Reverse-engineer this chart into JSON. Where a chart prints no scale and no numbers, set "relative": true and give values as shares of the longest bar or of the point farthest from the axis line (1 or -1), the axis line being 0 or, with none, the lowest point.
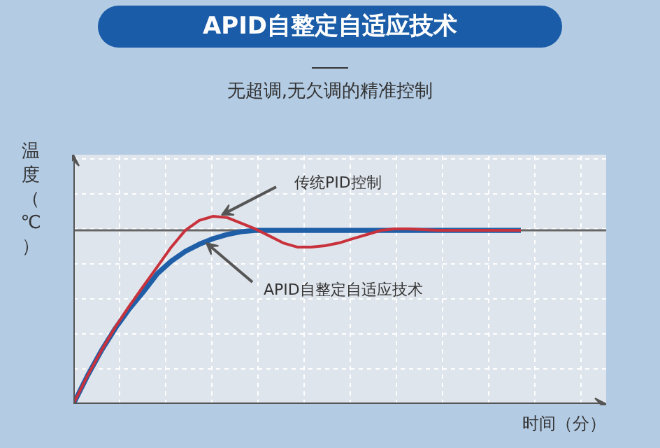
{
  "chart_data": {
    "type": "line",
    "title": "APID自整定自适应技术",
    "subtitle": "无超调,无欠调的精准控制",
    "ylabel": "温度（℃）",
    "xlabel": "时间（分）",
    "relative": true,
    "grid": true,
    "categories": [
      null,
      null,
      null,
      null,
      null,
      null,
      null,
      null,
      null,
      null,
      null,
      null,
      null,
      null,
      null,
      null,
      null,
      null,
      null,
      null,
      null,
      null,
      null,
      null,
      null,
      null,
      null,
      null,
      null,
      null,
      null,
      null,
      null
    ],
    "series": [
      {
        "color": "#c8323c",
        "values": [
          0,
          0.149,
          0.284,
          0.41,
          0.522,
          0.627,
          0.731,
          0.836,
          0.925,
          0.978,
          1,
          0.993,
          0.963,
          0.933,
          0.896,
          0.858,
          0.836,
          0.836,
          0.843,
          0.858,
          0.881,
          0.903,
          0.925,
          0.933,
          0.933,
          0.929,
          0.925,
          0.925,
          0.925,
          0.925,
          0.925,
          0.925,
          0.925
        ]
      },
      {
        "color": "#1f5fa8",
        "values": [
          0,
          0.149,
          0.284,
          0.403,
          0.507,
          0.597,
          0.694,
          0.761,
          0.813,
          0.851,
          0.881,
          0.903,
          0.918,
          0.925,
          0.925,
          0.925,
          0.925,
          0.925,
          0.925,
          0.925,
          0.925,
          0.925,
          0.925,
          0.925,
          0.925,
          0.925,
          0.925,
          0.925,
          0.925,
          0.925,
          0.925,
          0.925,
          0.925
        ]
      }
    ],
    "ref_lines": [
      {
        "axis": "y",
        "value": 0.925,
        "color": "#666666"
      }
    ],
    "annotations": [
      "传统PID控制",
      "APID自整定自适应技术"
    ]
  }
}
